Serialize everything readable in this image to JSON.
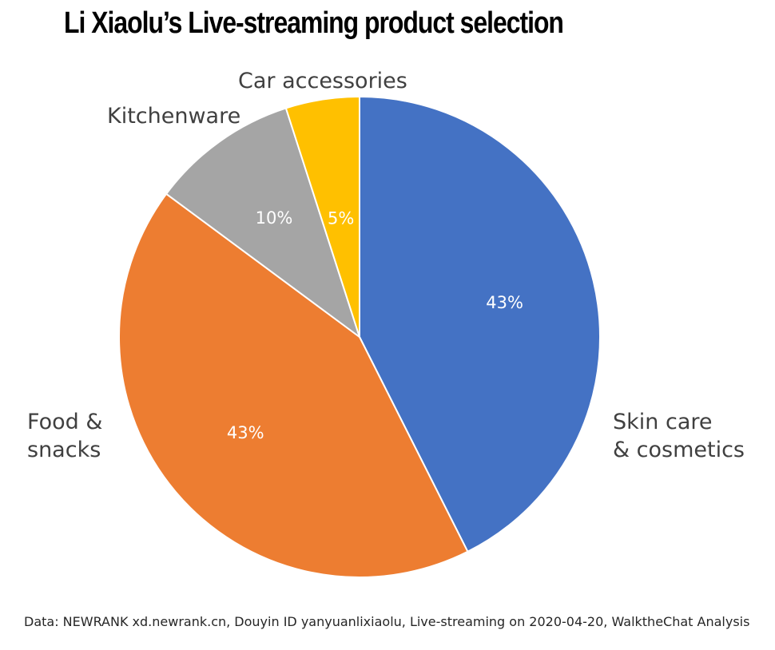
{
  "chart_data": {
    "type": "pie",
    "title": "Li Xiaolu’s Live-streaming product selection",
    "start_angle": "12 o'clock",
    "direction": "clockwise",
    "slices": [
      {
        "label": [
          "Skin care",
          "& cosmetics"
        ],
        "value": 43,
        "value_label": "43%",
        "color": "#4472C4"
      },
      {
        "label": [
          "Food &",
          "snacks"
        ],
        "value": 43,
        "value_label": "43%",
        "color": "#ED7D31"
      },
      {
        "label": [
          "Kitchenware"
        ],
        "value": 10,
        "value_label": "10%",
        "color": "#A5A5A5"
      },
      {
        "label": [
          "Car accessories"
        ],
        "value": 5,
        "value_label": "5%",
        "color": "#FFC000"
      }
    ],
    "value_label_color": "#FFFFFF",
    "category_label_color": "#404040",
    "legend": "none"
  },
  "footer": {
    "source": "Data: NEWRANK xd.newrank.cn, Douyin ID yanyuanlixiaolu, Live-streaming on 2020-04-20, WalktheChat Analysis"
  }
}
